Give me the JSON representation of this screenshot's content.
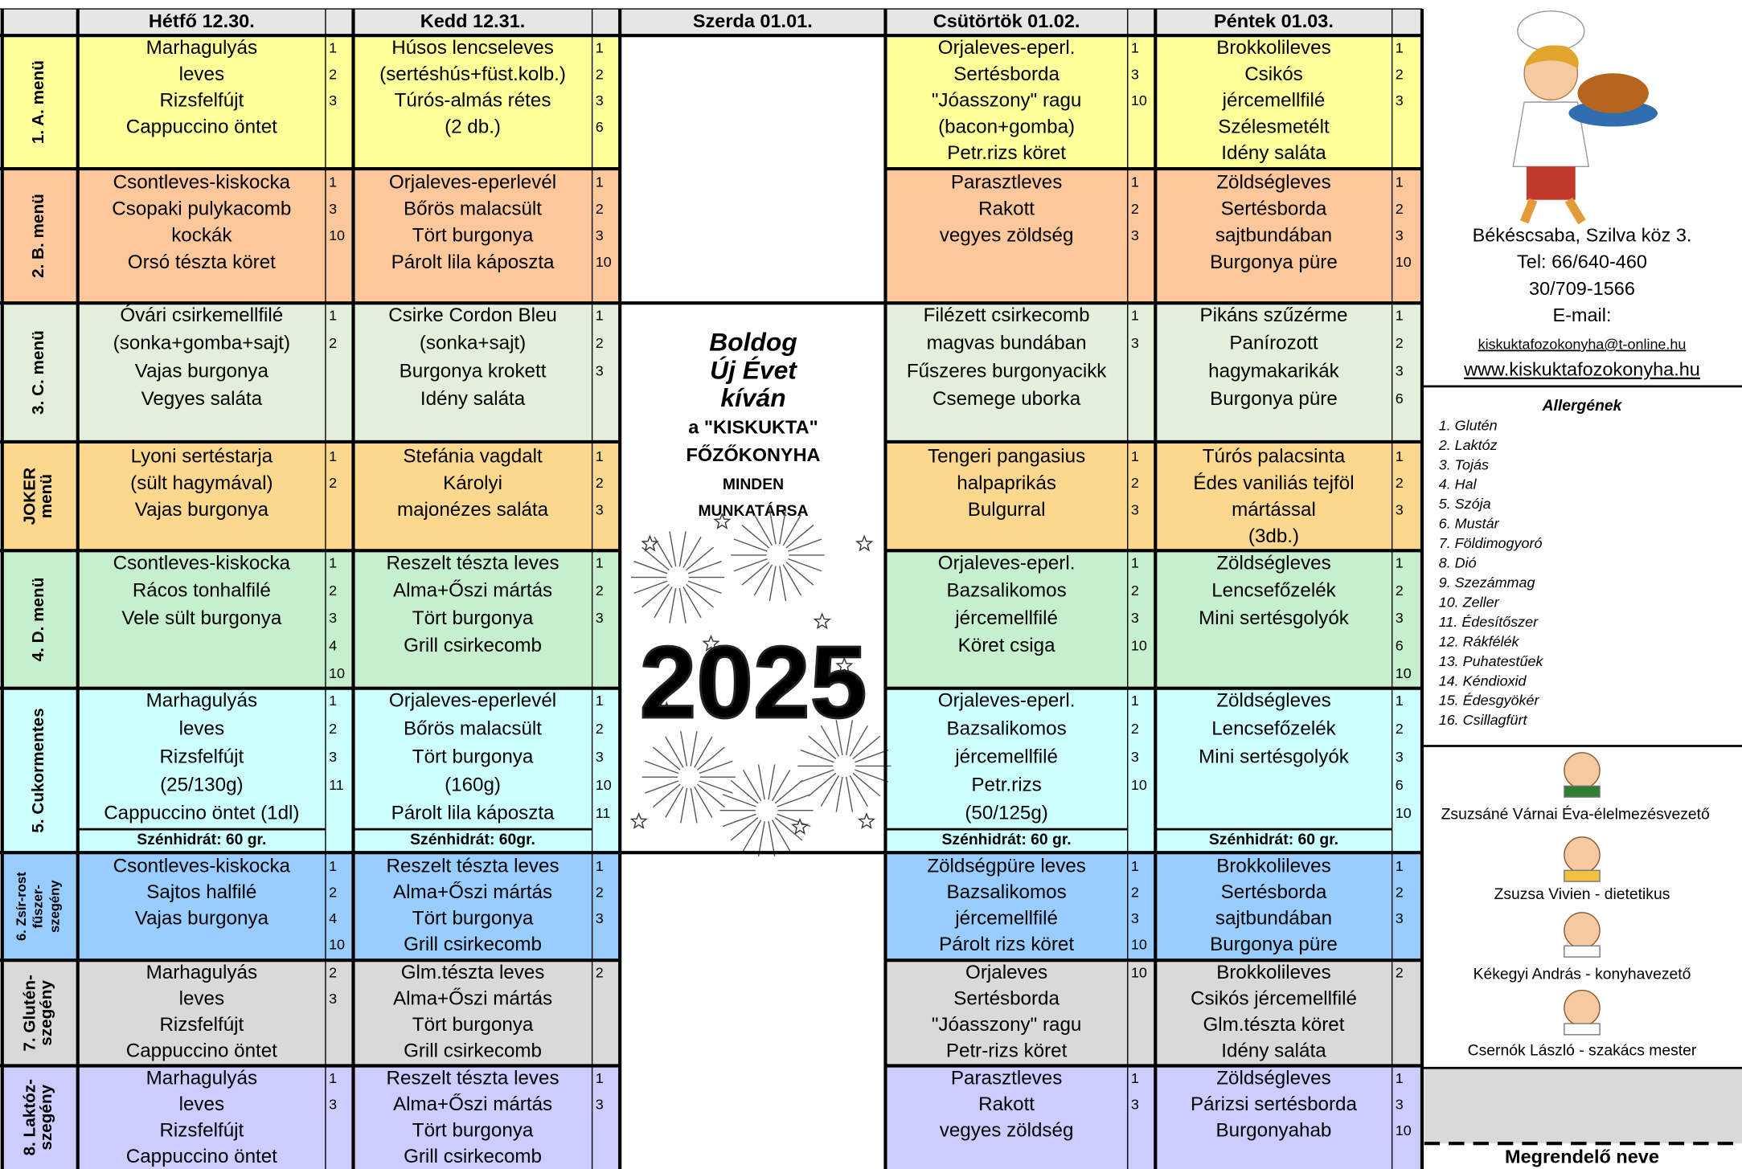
{
  "header": {
    "days": [
      "Hétfő 12.30.",
      "Kedd 12.31.",
      "Szerda 01.01.",
      "Csütörtök 01.02.",
      "Péntek 01.03."
    ]
  },
  "menus": [
    {
      "label": [
        "1. A. menü"
      ],
      "color": "#ffff99",
      "cells": [
        {
          "lines": [
            "Marhagulyás",
            "leves",
            "Rizsfelfújt",
            "Cappuccino öntet"
          ],
          "allergens": [
            1,
            2,
            3
          ]
        },
        {
          "lines": [
            "Húsos lencseleves",
            "(sertéshús+füst.kolb.)",
            "Túrós-almás rétes",
            "(2 db.)"
          ],
          "allergens": [
            1,
            2,
            3,
            6
          ]
        },
        {
          "lines": [
            "Orjaleves-eperl.",
            "Sertésborda",
            "\"Jóasszony\" ragu",
            "(bacon+gomba)",
            "Petr.rizs köret"
          ],
          "allergens": [
            1,
            3,
            10
          ]
        },
        {
          "lines": [
            "Brokkolileves",
            "Csikós",
            "jércemellfilé",
            "Szélesmetélt",
            "Idény saláta"
          ],
          "allergens": [
            1,
            2,
            3
          ]
        }
      ]
    },
    {
      "label": [
        "2. B. menü"
      ],
      "color": "#fcc89b",
      "cells": [
        {
          "lines": [
            "Csontleves-kiskocka",
            "Csopaki pulykacomb",
            "kockák",
            "Orsó tészta köret"
          ],
          "allergens": [
            1,
            3,
            10
          ]
        },
        {
          "lines": [
            "Orjaleves-eperlevél",
            "Bőrös malacsült",
            "Tört burgonya",
            "Párolt lila káposzta"
          ],
          "allergens": [
            1,
            2,
            3,
            10
          ]
        },
        {
          "lines": [
            "Parasztleves",
            "Rakott",
            "vegyes zöldség"
          ],
          "allergens": [
            1,
            2,
            3
          ]
        },
        {
          "lines": [
            "Zöldségleves",
            "Sertésborda",
            "sajtbundában",
            "Burgonya püre"
          ],
          "allergens": [
            1,
            2,
            3,
            10
          ]
        }
      ]
    },
    {
      "label": [
        "3. C. menü"
      ],
      "color": "#e2efda",
      "cells": [
        {
          "lines": [
            "Óvári csirkemellfilé",
            "(sonka+gomba+sajt)",
            "Vajas burgonya",
            "Vegyes saláta"
          ],
          "allergens": [
            1,
            2
          ]
        },
        {
          "lines": [
            "Csirke Cordon Bleu",
            "(sonka+sajt)",
            "Burgonya krokett",
            "Idény saláta"
          ],
          "allergens": [
            1,
            2,
            3
          ]
        },
        {
          "lines": [
            "Filézett csirkecomb",
            "magvas bundában",
            "Fűszeres burgonyacikk",
            "Csemege uborka"
          ],
          "allergens": [
            1,
            3
          ]
        },
        {
          "lines": [
            "Pikáns szűzérme",
            "Panírozott",
            "hagymakarikák",
            "Burgonya püre"
          ],
          "allergens": [
            1,
            2,
            3,
            6
          ]
        }
      ]
    },
    {
      "label": [
        "JOKER",
        "menü"
      ],
      "color": "#fcd88f",
      "cells": [
        {
          "lines": [
            "Lyoni sertéstarja",
            "(sült hagymával)",
            "Vajas burgonya"
          ],
          "allergens": [
            1,
            2
          ]
        },
        {
          "lines": [
            "Stefánia vagdalt",
            "Károlyi",
            "majonézes saláta"
          ],
          "allergens": [
            1,
            2,
            3
          ]
        },
        {
          "lines": [
            "Tengeri pangasius",
            "halpaprikás",
            "Bulgurral"
          ],
          "allergens": [
            1,
            2,
            3
          ]
        },
        {
          "lines": [
            "Túrós palacsinta",
            "Édes vaniliás tejföl",
            "mártással",
            "(3db.)"
          ],
          "allergens": [
            1,
            2,
            3
          ]
        }
      ]
    },
    {
      "label": [
        "4. D. menü"
      ],
      "color": "#c6efce",
      "cells": [
        {
          "lines": [
            "Csontleves-kiskocka",
            "Rácos tonhalfilé",
            "Vele sült burgonya"
          ],
          "allergens": [
            1,
            2,
            3,
            4,
            10
          ]
        },
        {
          "lines": [
            "Reszelt tészta leves",
            "Alma+Őszi mártás",
            "Tört burgonya",
            "Grill csirkecomb"
          ],
          "allergens": [
            1,
            2,
            3
          ]
        },
        {
          "lines": [
            "Orjaleves-eperl.",
            "Bazsalikomos",
            "jércemellfilé",
            "Köret csiga"
          ],
          "allergens": [
            1,
            2,
            3,
            10
          ]
        },
        {
          "lines": [
            "Zöldségleves",
            "Lencsefőzelék",
            "Mini sertésgolyók"
          ],
          "allergens": [
            1,
            2,
            3,
            6,
            10
          ]
        }
      ]
    },
    {
      "label": [
        "5. Cukormentes"
      ],
      "color": "#ccffff",
      "cells": [
        {
          "lines": [
            "Marhagulyás",
            "leves",
            "Rizsfelfújt",
            "(25/130g)",
            "Cappuccino öntet (1dl)"
          ],
          "allergens": [
            1,
            2,
            3,
            11
          ],
          "carbs": "Szénhidrát: 60 gr."
        },
        {
          "lines": [
            "Orjaleves-eperlevél",
            "Bőrös malacsült",
            "Tört burgonya",
            "(160g)",
            "Párolt lila káposzta"
          ],
          "allergens": [
            1,
            2,
            3,
            10,
            11
          ],
          "carbs": "Szénhidrát:  60gr."
        },
        {
          "lines": [
            "Orjaleves-eperl.",
            "Bazsalikomos",
            "jércemellfilé",
            "Petr.rizs",
            "(50/125g)"
          ],
          "allergens": [
            1,
            2,
            3,
            10
          ],
          "carbs": "Szénhidrát: 60 gr."
        },
        {
          "lines": [
            "Zöldségleves",
            "Lencsefőzelék",
            "Mini sertésgolyók"
          ],
          "allergens": [
            1,
            2,
            3,
            6,
            10
          ],
          "carbs": "Szénhidrát: 60 gr."
        }
      ]
    },
    {
      "label": [
        "6. Zsír-rost",
        "fűszer-",
        "szegény"
      ],
      "color": "#99ccff",
      "cells": [
        {
          "lines": [
            "Csontleves-kiskocka",
            "Sajtos halfilé",
            "Vajas burgonya"
          ],
          "allergens": [
            1,
            2,
            4,
            10
          ]
        },
        {
          "lines": [
            "Reszelt tészta leves",
            "Alma+Őszi mártás",
            "Tört burgonya",
            "Grill csirkecomb"
          ],
          "allergens": [
            1,
            2,
            3
          ]
        },
        {
          "lines": [
            "Zöldségpüre leves",
            "Bazsalikomos",
            "jércemellfilé",
            "Párolt rizs köret"
          ],
          "allergens": [
            1,
            2,
            3,
            10
          ]
        },
        {
          "lines": [
            "Brokkolileves",
            "Sertésborda",
            "sajtbundában",
            "Burgonya püre"
          ],
          "allergens": [
            1,
            2,
            3
          ]
        }
      ]
    },
    {
      "label": [
        "7. Glutén-",
        "szegény"
      ],
      "color": "#d9d9d9",
      "cells": [
        {
          "lines": [
            "Marhagulyás",
            "leves",
            "Rizsfelfújt",
            "Cappuccino öntet"
          ],
          "allergens": [
            2,
            3
          ]
        },
        {
          "lines": [
            "Glm.tészta leves",
            "Alma+Őszi mártás",
            "Tört burgonya",
            "Grill csirkecomb"
          ],
          "allergens": [
            2
          ]
        },
        {
          "lines": [
            "Orjaleves",
            "Sertésborda",
            "\"Jóasszony\" ragu",
            "Petr-rizs köret"
          ],
          "allergens": [
            10
          ]
        },
        {
          "lines": [
            "Brokkolileves",
            "Csikós jércemellfilé",
            "Glm.tészta köret",
            "Idény saláta"
          ],
          "allergens": [
            2
          ]
        }
      ]
    },
    {
      "label": [
        "8. Laktóz-",
        "szegény"
      ],
      "color": "#ccccff",
      "cells": [
        {
          "lines": [
            "Marhagulyás",
            "leves",
            "Rizsfelfújt",
            "Cappuccino öntet"
          ],
          "allergens": [
            1,
            3
          ]
        },
        {
          "lines": [
            "Reszelt tészta leves",
            "Alma+Őszi mártás",
            "Tört burgonya",
            "Grill csirkecomb"
          ],
          "allergens": [
            1,
            3
          ]
        },
        {
          "lines": [
            "Parasztleves",
            "Rakott",
            "vegyes zöldség"
          ],
          "allergens": [
            1,
            3
          ]
        },
        {
          "lines": [
            "Zöldségleves",
            "Párizsi sertésborda",
            "Burgonyahab"
          ],
          "allergens": [
            1,
            3,
            10
          ]
        }
      ]
    }
  ],
  "greeting": {
    "script": [
      "Boldog",
      "Új Évet",
      "kíván"
    ],
    "lines": [
      "a \"KISKUKTA\"",
      "FŐZŐKONYHA",
      "MINDEN",
      "MUNKATÁRSA"
    ],
    "year": "2025"
  },
  "contact": {
    "address": "Békéscsaba, Szilva köz 3.",
    "phone": "Tel: 66/640-460",
    "mobile": "30/709-1566",
    "email_label": "E-mail:",
    "email": "kiskuktafozokonyha@t-online.hu",
    "web": "www.kiskuktafozokonyha.hu"
  },
  "allergens": {
    "title": "Allergének",
    "items": [
      "1. Glutén",
      "2. Laktóz",
      "3. Tojás",
      "4. Hal",
      "5. Szója",
      "6. Mustár",
      "7. Földimogyoró",
      "8. Dió",
      "9. Szezámmag",
      "10. Zeller",
      "11. Édesítőszer",
      "12. Rákfélék",
      "13. Puhatestűek",
      "14. Kéndioxid",
      "15. Édesgyökér",
      "16. Csillagfürt"
    ]
  },
  "staff": [
    "Zsuzsáné Várnai Éva-élelmezésvezető",
    "Zsuzsa Vivien - dietetikus",
    "Kékegyi András - konyhavezető",
    "Csernók László - szakács mester"
  ],
  "order": {
    "label": "Megrendelő neve"
  }
}
